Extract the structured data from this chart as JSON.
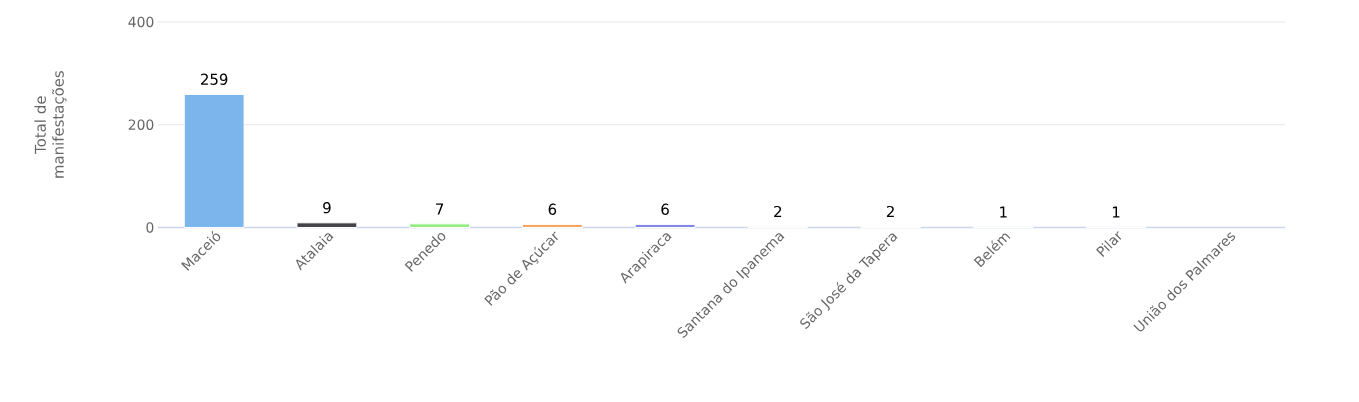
{
  "chart_data": {
    "type": "bar",
    "ylabel": "Total de manifestações",
    "categories": [
      "Maceió",
      "Atalaia",
      "Penedo",
      "Pão de Açúcar",
      "Arapiraca",
      "Santana do Ipanema",
      "São José da Tapera",
      "Belém",
      "Pilar",
      "União dos Palmares"
    ],
    "values": [
      259,
      9,
      7,
      6,
      6,
      2,
      2,
      1,
      1,
      null
    ],
    "colors": [
      "#7cb5ec",
      "#434348",
      "#90ed7d",
      "#f7a35c",
      "#8085e9",
      "#f15c80",
      "#e4d354",
      "#2b908f",
      "#f45b5b",
      "#91e8e1"
    ],
    "ylim": [
      0,
      400
    ],
    "yticks": [
      0,
      200,
      400
    ],
    "grid": "y",
    "data_labels": true
  }
}
